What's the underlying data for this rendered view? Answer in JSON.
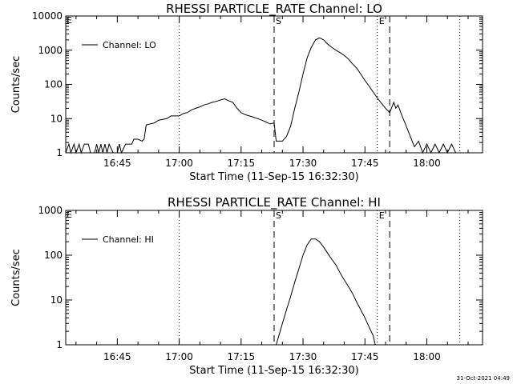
{
  "footer_timestamp": "31-Oct-2021 04:49",
  "chart_data": [
    {
      "type": "line",
      "title": "RHESSI PARTICLE_RATE Channel: LO",
      "xlabel": "Start Time (11-Sep-15 16:32:30)",
      "ylabel": "Counts/sec",
      "y_scale": "log",
      "xlim": [
        "16:32:30",
        "18:13:30"
      ],
      "ylim": [
        1,
        10000
      ],
      "x_ticks": [
        "16:45",
        "17:00",
        "17:15",
        "17:30",
        "17:45",
        "18:00"
      ],
      "y_ticks": [
        "1",
        "10",
        "100",
        "1000",
        "10000"
      ],
      "legend": {
        "position": "top-left",
        "label": "Channel: LO"
      },
      "markers": [
        {
          "label": "S",
          "time": "17:23",
          "style": "dashed"
        },
        {
          "label": "E",
          "time": "17:48",
          "style": "dotted"
        },
        {
          "label": "",
          "time": "17:51",
          "style": "dashed"
        },
        {
          "label": "",
          "time": "17:00",
          "style": "dotted"
        },
        {
          "label": "",
          "time": "18:08",
          "style": "dotted"
        }
      ],
      "corner_marks": [
        "E"
      ],
      "series": [
        {
          "name": "Channel: LO",
          "points": [
            [
              "16:32:30",
              1
            ],
            [
              "16:33:15",
              1.8
            ],
            [
              "16:33:45",
              1
            ],
            [
              "16:34:30",
              1.8
            ],
            [
              "16:35:00",
              1
            ],
            [
              "16:35:45",
              1.8
            ],
            [
              "16:36:15",
              1
            ],
            [
              "16:37:00",
              1.8
            ],
            [
              "16:38:00",
              1.8
            ],
            [
              "16:38:30",
              1
            ],
            [
              "16:39:30",
              1
            ],
            [
              "16:40:00",
              1.8
            ],
            [
              "16:40:30",
              1
            ],
            [
              "16:41:00",
              1.8
            ],
            [
              "16:41:30",
              1
            ],
            [
              "16:42:00",
              1.8
            ],
            [
              "16:42:30",
              1
            ],
            [
              "16:43:00",
              1.8
            ],
            [
              "16:44:00",
              1
            ],
            [
              "16:45:00",
              1
            ],
            [
              "16:45:30",
              1.8
            ],
            [
              "16:46:00",
              1
            ],
            [
              "16:47:00",
              1.8
            ],
            [
              "16:48:00",
              1.8
            ],
            [
              "16:48:30",
              1.8
            ],
            [
              "16:49:00",
              2.5
            ],
            [
              "16:50:00",
              2.5
            ],
            [
              "16:51:00",
              2.2
            ],
            [
              "16:51:30",
              2.5
            ],
            [
              "16:52:00",
              6.5
            ],
            [
              "16:54:00",
              7.5
            ],
            [
              "16:55:00",
              9
            ],
            [
              "16:57:00",
              10
            ],
            [
              "16:58:00",
              12
            ],
            [
              "17:00:00",
              12
            ],
            [
              "17:01:00",
              14
            ],
            [
              "17:02:00",
              15
            ],
            [
              "17:03:00",
              18
            ],
            [
              "17:04:00",
              20
            ],
            [
              "17:05:00",
              22
            ],
            [
              "17:06:00",
              25
            ],
            [
              "17:07:00",
              27
            ],
            [
              "17:08:00",
              30
            ],
            [
              "17:09:00",
              32
            ],
            [
              "17:10:00",
              35
            ],
            [
              "17:11:00",
              38
            ],
            [
              "17:12:00",
              33
            ],
            [
              "17:13:00",
              30
            ],
            [
              "17:14:00",
              20
            ],
            [
              "17:15:00",
              15
            ],
            [
              "17:16:00",
              13
            ],
            [
              "17:17:00",
              12
            ],
            [
              "17:18:00",
              11
            ],
            [
              "17:19:00",
              10
            ],
            [
              "17:20:00",
              9
            ],
            [
              "17:21:00",
              8
            ],
            [
              "17:22:00",
              7
            ],
            [
              "17:23:00",
              7.5
            ],
            [
              "17:23:30",
              2.2
            ],
            [
              "17:25:00",
              2.2
            ],
            [
              "17:26:00",
              3
            ],
            [
              "17:27:00",
              6
            ],
            [
              "17:28:00",
              20
            ],
            [
              "17:29:00",
              60
            ],
            [
              "17:30:00",
              200
            ],
            [
              "17:31:00",
              600
            ],
            [
              "17:32:00",
              1200
            ],
            [
              "17:33:00",
              2000
            ],
            [
              "17:34:00",
              2300
            ],
            [
              "17:35:00",
              2000
            ],
            [
              "17:36:00",
              1500
            ],
            [
              "17:37:00",
              1200
            ],
            [
              "17:38:00",
              1000
            ],
            [
              "17:39:00",
              850
            ],
            [
              "17:40:00",
              700
            ],
            [
              "17:41:00",
              550
            ],
            [
              "17:42:00",
              400
            ],
            [
              "17:43:00",
              300
            ],
            [
              "17:44:00",
              200
            ],
            [
              "17:45:00",
              130
            ],
            [
              "17:46:00",
              90
            ],
            [
              "17:47:00",
              60
            ],
            [
              "17:48:00",
              40
            ],
            [
              "17:49:00",
              28
            ],
            [
              "17:50:00",
              20
            ],
            [
              "17:51:00",
              15
            ],
            [
              "17:52:00",
              30
            ],
            [
              "17:52:30",
              20
            ],
            [
              "17:53:00",
              25
            ],
            [
              "17:54:00",
              12
            ],
            [
              "17:55:00",
              6
            ],
            [
              "17:56:00",
              3
            ],
            [
              "17:57:00",
              1.5
            ],
            [
              "17:58:00",
              2.2
            ],
            [
              "17:59:00",
              1
            ],
            [
              "18:00:00",
              1.8
            ],
            [
              "18:01:00",
              1
            ],
            [
              "18:02:00",
              1.8
            ],
            [
              "18:03:00",
              1
            ],
            [
              "18:04:00",
              1.8
            ],
            [
              "18:05:00",
              1
            ],
            [
              "18:06:00",
              1.8
            ],
            [
              "18:07:00",
              1
            ]
          ]
        }
      ]
    },
    {
      "type": "line",
      "title": "RHESSI PARTICLE_RATE Channel: HI",
      "xlabel": "Start Time (11-Sep-15 16:32:30)",
      "ylabel": "Counts/sec",
      "y_scale": "log",
      "xlim": [
        "16:32:30",
        "18:13:30"
      ],
      "ylim": [
        1,
        1000
      ],
      "x_ticks": [
        "16:45",
        "17:00",
        "17:15",
        "17:30",
        "17:45",
        "18:00"
      ],
      "y_ticks": [
        "1",
        "10",
        "100",
        "1000"
      ],
      "legend": {
        "position": "top-left",
        "label": "Channel: HI"
      },
      "markers": [
        {
          "label": "S",
          "time": "17:23",
          "style": "dashed"
        },
        {
          "label": "E",
          "time": "17:48",
          "style": "dotted"
        },
        {
          "label": "",
          "time": "17:51",
          "style": "dashed"
        },
        {
          "label": "",
          "time": "17:00",
          "style": "dotted"
        },
        {
          "label": "",
          "time": "18:08",
          "style": "dotted"
        }
      ],
      "corner_marks": [
        "E"
      ],
      "series": [
        {
          "name": "Channel: HI",
          "points": [
            [
              "17:23:30",
              1
            ],
            [
              "17:25:00",
              3
            ],
            [
              "17:26:00",
              6
            ],
            [
              "17:27:00",
              12
            ],
            [
              "17:28:00",
              25
            ],
            [
              "17:29:00",
              50
            ],
            [
              "17:30:00",
              100
            ],
            [
              "17:31:00",
              170
            ],
            [
              "17:32:00",
              230
            ],
            [
              "17:33:00",
              230
            ],
            [
              "17:34:00",
              200
            ],
            [
              "17:35:00",
              150
            ],
            [
              "17:36:00",
              110
            ],
            [
              "17:37:00",
              80
            ],
            [
              "17:38:00",
              60
            ],
            [
              "17:39:00",
              40
            ],
            [
              "17:40:00",
              28
            ],
            [
              "17:41:00",
              20
            ],
            [
              "17:42:00",
              14
            ],
            [
              "17:43:00",
              9
            ],
            [
              "17:44:00",
              6
            ],
            [
              "17:45:00",
              4
            ],
            [
              "17:46:00",
              2.5
            ],
            [
              "17:47:00",
              1.6
            ],
            [
              "17:47:30",
              1
            ]
          ]
        }
      ]
    }
  ]
}
